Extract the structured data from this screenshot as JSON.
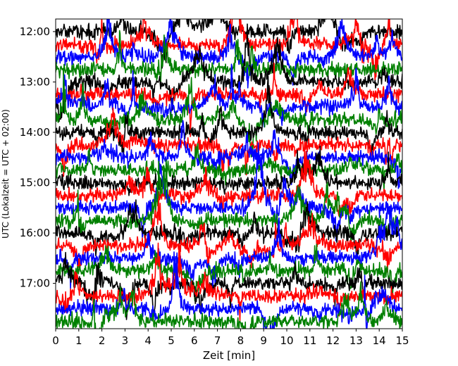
{
  "chart_data": {
    "type": "line",
    "title": "",
    "xlabel": "Zeit  [min]",
    "ylabel": "UTC (Lokalzeit = UTC + 02:00)",
    "xlim": [
      0,
      15
    ],
    "x_ticks": [
      "0",
      "1",
      "2",
      "3",
      "4",
      "5",
      "6",
      "7",
      "8",
      "9",
      "10",
      "11",
      "12",
      "13",
      "14",
      "15"
    ],
    "y_ticks": [
      {
        "hour": 12,
        "label": "12:00"
      },
      {
        "hour": 13,
        "label": "13:00"
      },
      {
        "hour": 14,
        "label": "14:00"
      },
      {
        "hour": 15,
        "label": "15:00"
      },
      {
        "hour": 16,
        "label": "16:00"
      },
      {
        "hour": 17,
        "label": "17:00"
      }
    ],
    "ylim_hours": [
      11.75,
      17.9
    ],
    "trace_interval_minutes": 15,
    "trace_count": 24,
    "first_trace_hour": 12.0,
    "color_cycle": [
      "#000000",
      "#ff0000",
      "#0000ff",
      "#008000"
    ],
    "grid": false,
    "legend": "none"
  }
}
